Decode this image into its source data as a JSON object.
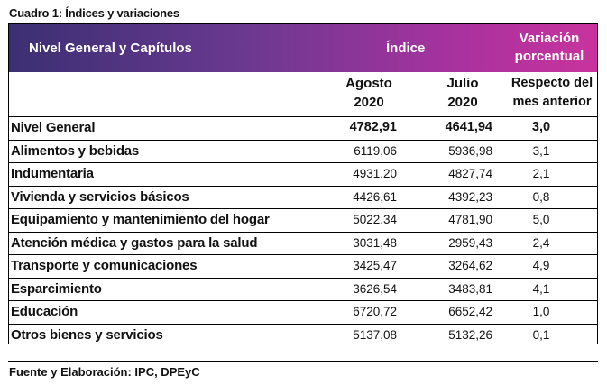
{
  "caption": "Cuadro 1: Índices y variaciones",
  "header": {
    "nivel": "Nivel General y Capítulos",
    "indice": "Índice",
    "variacion_l1": "Variación",
    "variacion_l2": "porcentual"
  },
  "subheader": {
    "agosto_l1": "Agosto",
    "agosto_l2": "2020",
    "julio_l1": "Julio",
    "julio_l2": "2020",
    "respecto_l1": "Respecto del",
    "respecto_l2": "mes anterior"
  },
  "rows": [
    {
      "name": "Nivel General",
      "agosto": "4782,91",
      "julio": "4641,94",
      "var": "3,0"
    },
    {
      "name": "Alimentos y bebidas",
      "agosto": "6119,06",
      "julio": "5936,98",
      "var": "3,1"
    },
    {
      "name": "Indumentaria",
      "agosto": "4931,20",
      "julio": "4827,74",
      "var": "2,1"
    },
    {
      "name": "Vivienda y servicios básicos",
      "agosto": "4426,61",
      "julio": "4392,23",
      "var": "0,8"
    },
    {
      "name": "Equipamiento y mantenimiento del hogar",
      "agosto": "5022,34",
      "julio": "4781,90",
      "var": "5,0"
    },
    {
      "name": "Atención médica y gastos para la salud",
      "agosto": "3031,48",
      "julio": "2959,43",
      "var": "2,4"
    },
    {
      "name": " Transporte y comunicaciones",
      "agosto": "3425,47",
      "julio": "3264,62",
      "var": "4,9"
    },
    {
      "name": "Esparcimiento",
      "agosto": "3626,54",
      "julio": "3483,81",
      "var": "4,1"
    },
    {
      "name": "Educación",
      "agosto": "6720,72",
      "julio": "6652,42",
      "var": "1,0"
    },
    {
      "name": "Otros bienes y servicios",
      "agosto": "5137,08",
      "julio": "5132,26",
      "var": "0,1"
    }
  ],
  "source": "Fuente y Elaboración: IPC, DPEyC",
  "colors": {
    "header_start": "#3b2f73",
    "header_end": "#c8339e"
  }
}
